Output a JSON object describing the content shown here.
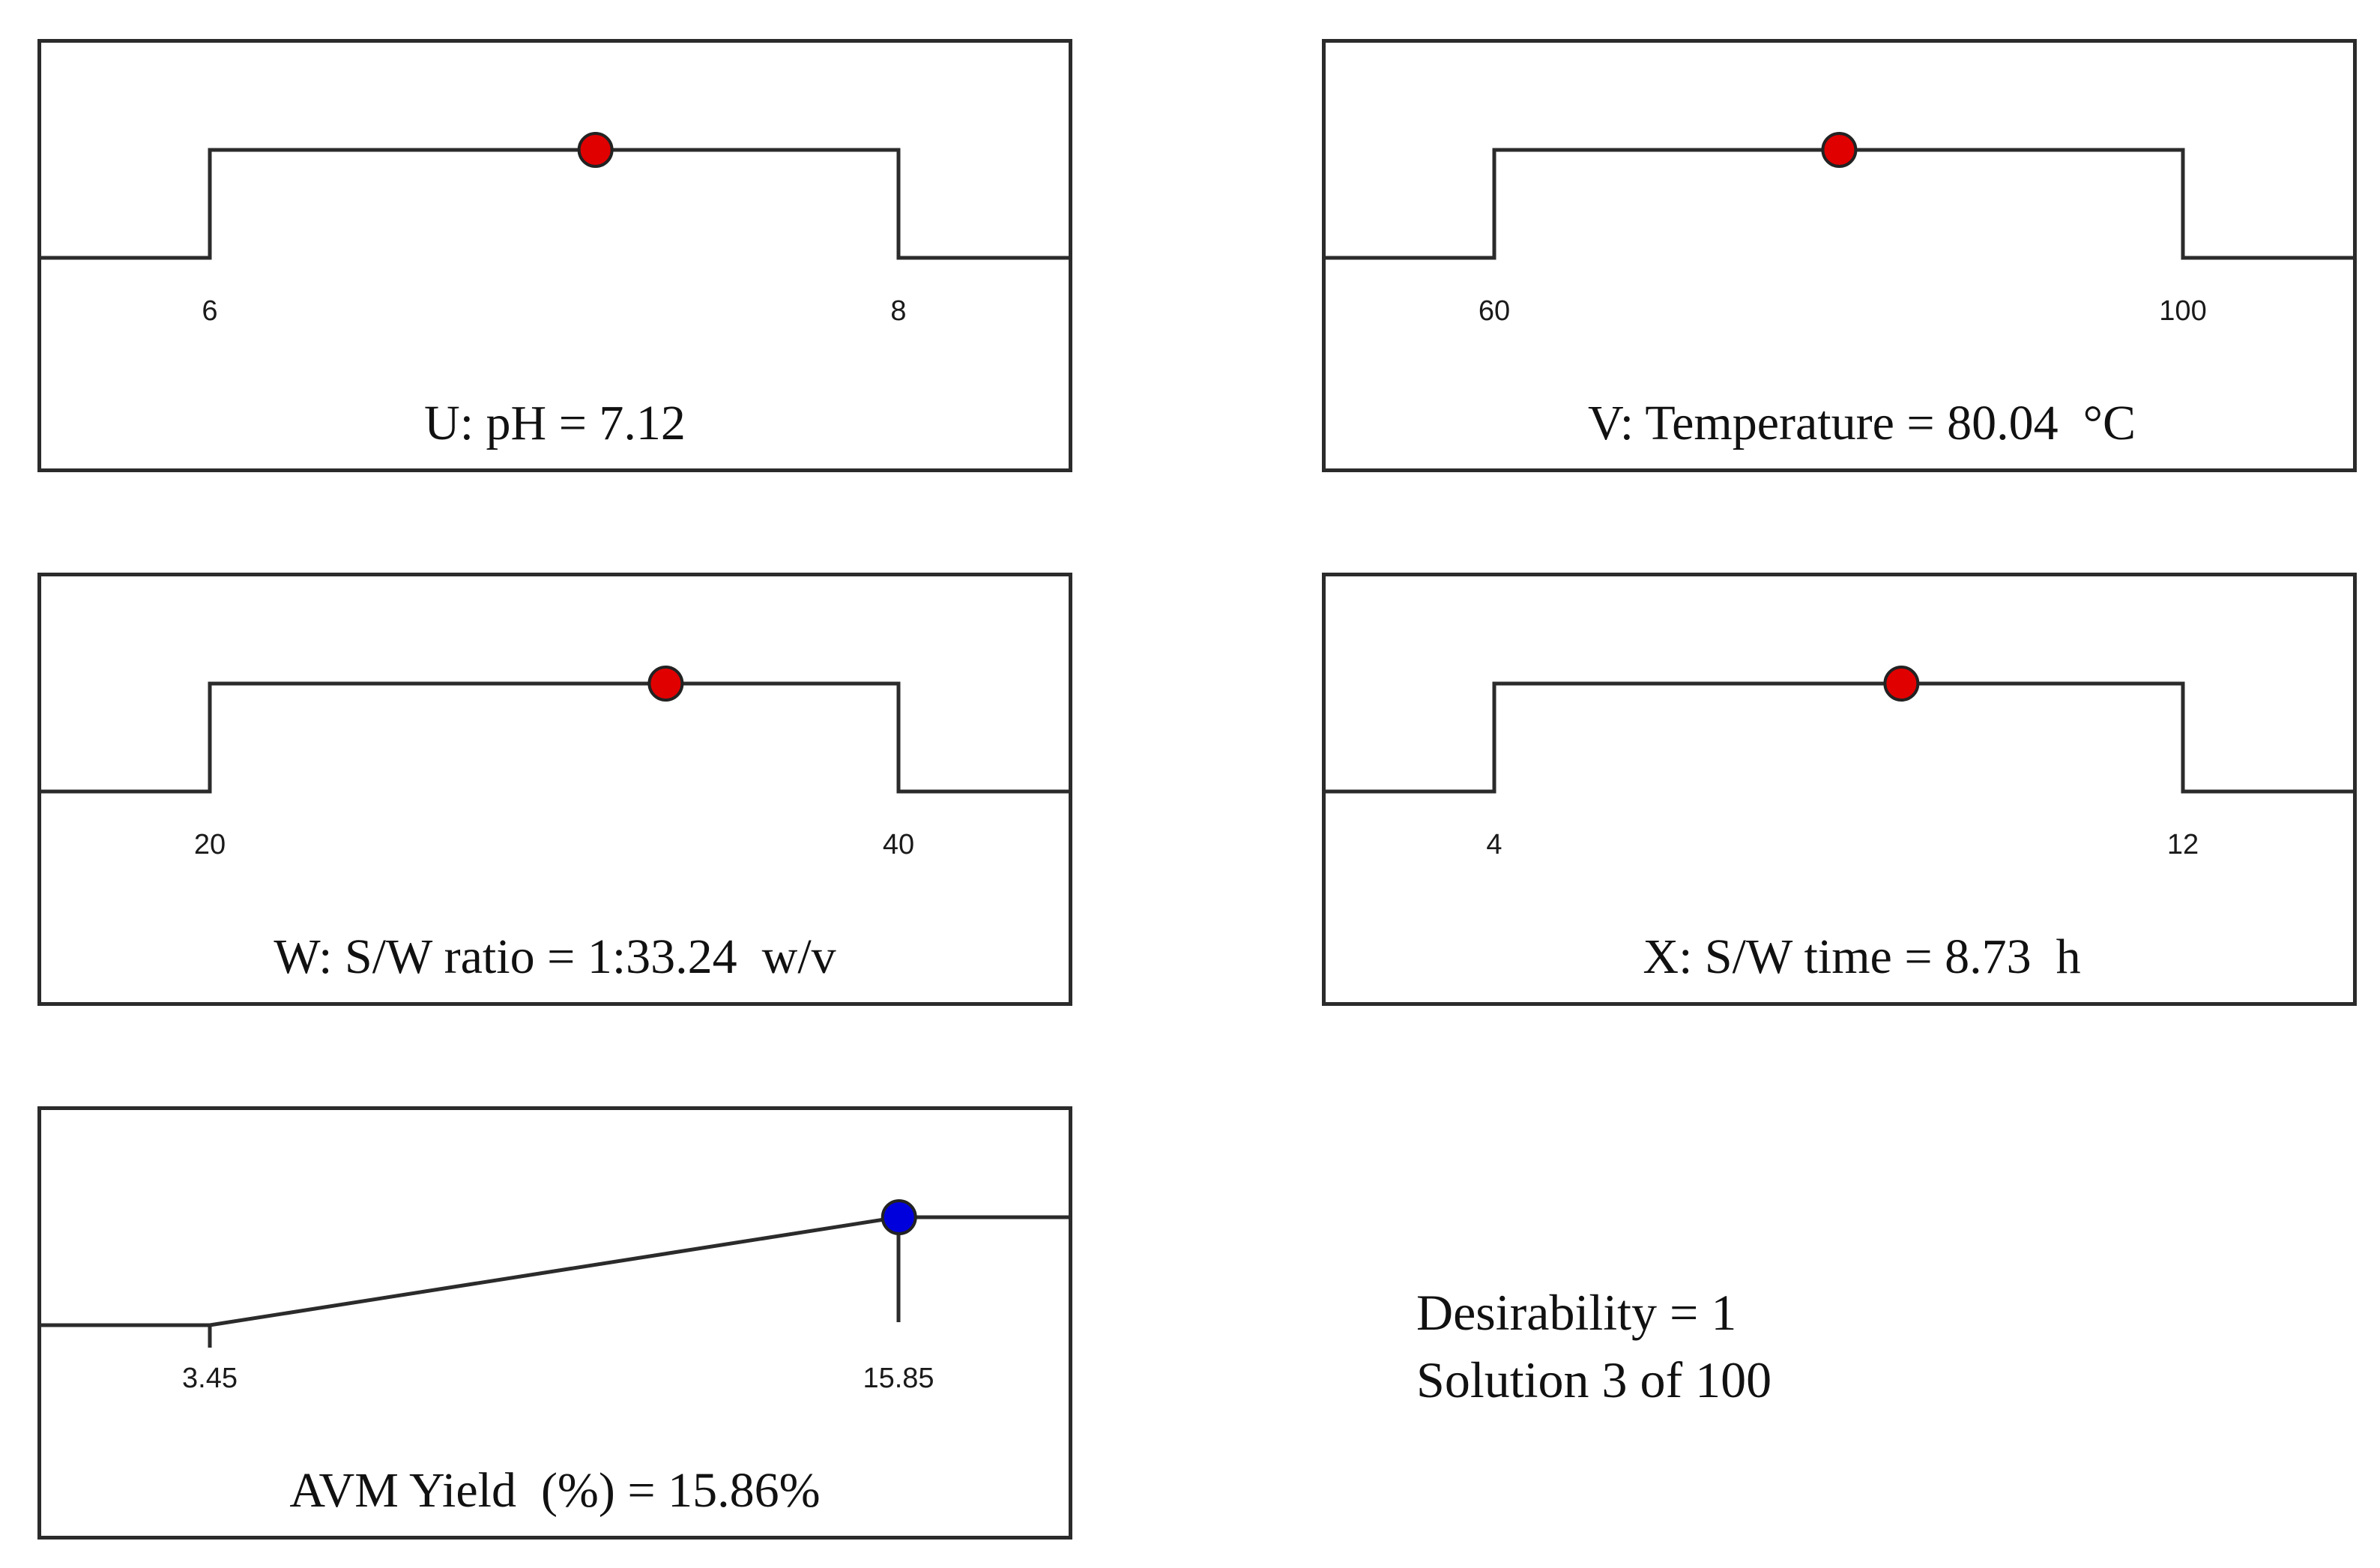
{
  "chart_data": [
    {
      "type": "line",
      "shape": "range",
      "label": "U: pH = 7.12",
      "tick_labels": [
        "6",
        "8"
      ],
      "x_range": [
        6,
        8
      ],
      "value": 7.12,
      "marker_color": "#e00000"
    },
    {
      "type": "line",
      "shape": "range",
      "label": "V: Temperature = 80.04  °C",
      "tick_labels": [
        "60",
        "100"
      ],
      "x_range": [
        60,
        100
      ],
      "value": 80.04,
      "marker_color": "#e00000"
    },
    {
      "type": "line",
      "shape": "range",
      "label": "W: S/W ratio = 1:33.24  w/v",
      "tick_labels": [
        "20",
        "40"
      ],
      "x_range": [
        20,
        40
      ],
      "value": 33.24,
      "marker_color": "#e00000"
    },
    {
      "type": "line",
      "shape": "range",
      "label": "X: S/W time = 8.73  h",
      "tick_labels": [
        "4",
        "12"
      ],
      "x_range": [
        4,
        12
      ],
      "value": 8.73,
      "marker_color": "#e00000"
    },
    {
      "type": "line",
      "shape": "maximize",
      "label": "AVM Yield  (%) = 15.86%",
      "tick_labels": [
        "3.45",
        "15.85"
      ],
      "x_range": [
        3.45,
        15.85
      ],
      "value": 15.86,
      "marker_color": "#0000dd"
    }
  ],
  "summary": {
    "desirability": "Desirability = 1",
    "solution": "Solution 3  of 100"
  }
}
